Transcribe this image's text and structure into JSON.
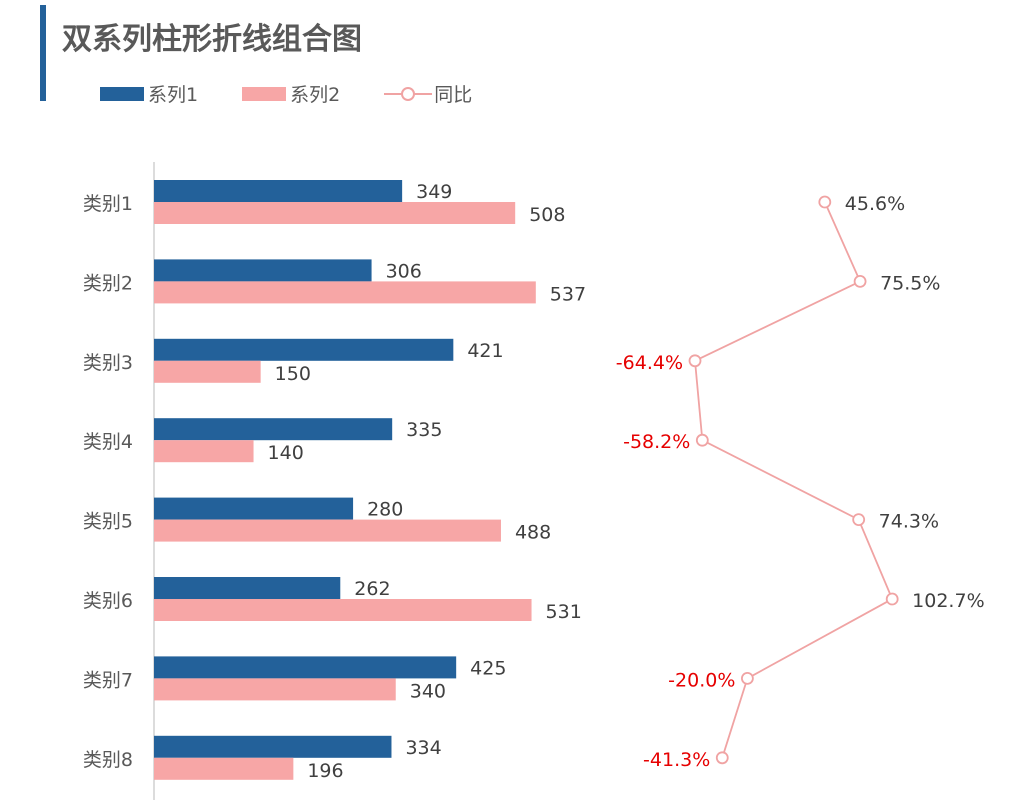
{
  "title": "双系列柱形折线组合图",
  "colors": {
    "series1": "#23619a",
    "series2": "#f7a6a6",
    "line": "#f0a3a3",
    "negative": "#e60000",
    "text": "#404040"
  },
  "chart_data": {
    "type": "bar",
    "orientation": "horizontal",
    "title": "双系列柱形折线组合图",
    "categories": [
      "类别1",
      "类别2",
      "类别3",
      "类别4",
      "类别5",
      "类别6",
      "类别7",
      "类别8"
    ],
    "series": [
      {
        "name": "系列1",
        "type": "bar",
        "values": [
          349,
          306,
          421,
          335,
          280,
          262,
          425,
          334
        ]
      },
      {
        "name": "系列2",
        "type": "bar",
        "values": [
          508,
          537,
          150,
          140,
          488,
          531,
          340,
          196
        ]
      },
      {
        "name": "同比",
        "type": "line",
        "values": [
          45.6,
          75.5,
          -64.4,
          -58.2,
          74.3,
          102.7,
          -20.0,
          -41.3
        ],
        "labels": [
          "45.6%",
          "75.5%",
          "-64.4%",
          "-58.2%",
          "74.3%",
          "102.7%",
          "-20.0%",
          "-41.3%"
        ]
      }
    ],
    "legend": "top-left",
    "grid": false
  }
}
